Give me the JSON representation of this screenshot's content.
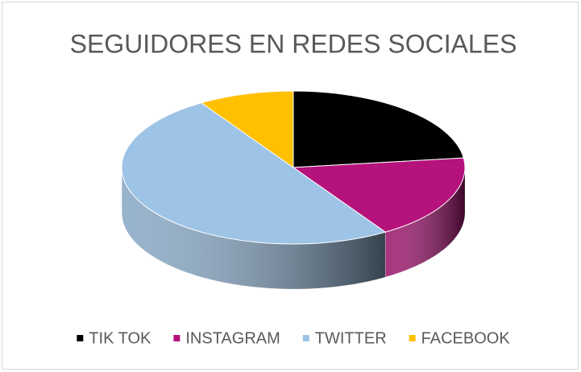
{
  "chart_data": {
    "type": "pie",
    "title": "SEGUIDORES EN REDES SOCIALES",
    "categories": [
      "TIK TOK",
      "INSTAGRAM",
      "TWITTER",
      "FACEBOOK"
    ],
    "values": [
      23,
      18,
      50,
      9
    ],
    "colors": [
      "#000000",
      "#b5127b",
      "#9dc3e6",
      "#ffc000"
    ],
    "legend": "bottom"
  }
}
